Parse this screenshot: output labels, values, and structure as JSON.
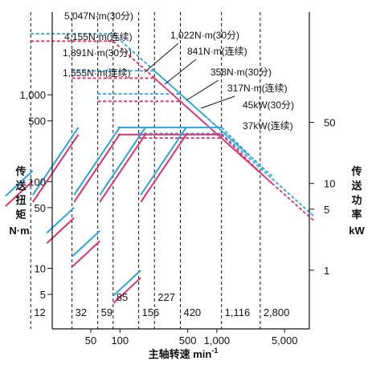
{
  "chart_data": {
    "type": "line",
    "x_axis": {
      "label": "主轴转速 min",
      "label_superscript": "-1",
      "scale": "log",
      "range": [
        20,
        9000
      ],
      "ticks": [
        {
          "value": 50,
          "label": "50"
        },
        {
          "value": 100,
          "label": "100"
        },
        {
          "value": 500,
          "label": "500"
        },
        {
          "value": 1000,
          "label": "1,000"
        },
        {
          "value": 5000,
          "label": "5,000"
        }
      ]
    },
    "y_left": {
      "label_chars": [
        "传",
        "送",
        "扭",
        "矩"
      ],
      "unit": "N·m",
      "scale": "log",
      "range": [
        2,
        9000
      ],
      "ticks": [
        {
          "value": 5,
          "label": "5"
        },
        {
          "value": 10,
          "label": "10"
        },
        {
          "value": 50,
          "label": "50"
        },
        {
          "value": 100,
          "label": "100"
        },
        {
          "value": 500,
          "label": "500"
        },
        {
          "value": 1000,
          "label": "1,000"
        }
      ]
    },
    "y_right": {
      "label_chars": [
        "传",
        "送",
        "功",
        "率"
      ],
      "unit": "kW",
      "scale": "log",
      "ticks": [
        {
          "value": 1,
          "label": "1"
        },
        {
          "value": 5,
          "label": "5"
        },
        {
          "value": 10,
          "label": "10"
        },
        {
          "value": 50,
          "label": "50"
        }
      ]
    },
    "speed_markers": [
      {
        "value": 12,
        "label": "12",
        "row": 0
      },
      {
        "value": 32,
        "label": "32",
        "row": 0
      },
      {
        "value": 59,
        "label": "59",
        "row": 0
      },
      {
        "value": 85,
        "label": "85",
        "row": 1
      },
      {
        "value": 156,
        "label": "156",
        "row": 0
      },
      {
        "value": 227,
        "label": "227",
        "row": 1
      },
      {
        "value": 420,
        "label": "420",
        "row": 0
      },
      {
        "value": 1116,
        "label": "1,116",
        "row": 0
      },
      {
        "value": 2800,
        "label": "2,800",
        "row": 0
      }
    ],
    "series": [
      {
        "name": "30分",
        "color": "#2aa4e0",
        "power_kw": 45,
        "power_label": "45kW(30分)",
        "torque_levels": [
          {
            "torque": 5047,
            "label": "5,047N·m(30分)",
            "range": [
              12,
              85
            ]
          },
          {
            "torque": 1891,
            "label": "1,891N·m(30分)",
            "range": [
              32,
              227
            ]
          },
          {
            "torque": 1022,
            "label": "1,022N·m(30分)",
            "range": [
              59,
              420
            ]
          },
          {
            "torque": 358,
            "label": "358N·m(30分)",
            "range": [
              156,
              1116
            ]
          }
        ]
      },
      {
        "name": "连续",
        "color": "#e0306e",
        "power_kw": 37,
        "power_label": "37kW(连续)",
        "torque_levels": [
          {
            "torque": 4155,
            "label": "4,155N·m(连续)",
            "range": [
              12,
              85
            ]
          },
          {
            "torque": 1555,
            "label": "1,555N·m(连续)",
            "range": [
              32,
              227
            ]
          },
          {
            "torque": 841,
            "label": "841N·m(连续)",
            "range": [
              59,
              420
            ]
          },
          {
            "torque": 317,
            "label": "317N·m(连续)",
            "range": [
              156,
              1116
            ]
          }
        ]
      }
    ],
    "colors": {
      "blue": "#2aa4e0",
      "pink": "#e0306e",
      "axis": "#111111"
    }
  }
}
